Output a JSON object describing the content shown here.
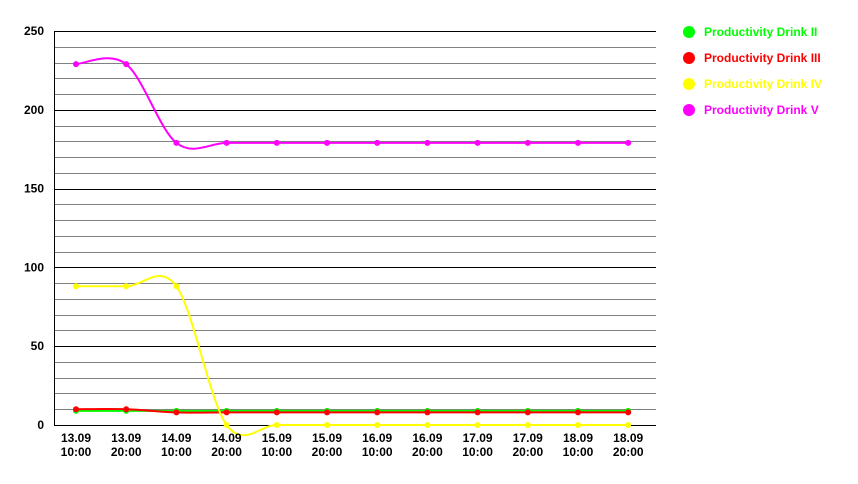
{
  "chart_data": {
    "type": "line",
    "categories": [
      [
        "13.09",
        "10:00"
      ],
      [
        "13.09",
        "20:00"
      ],
      [
        "14.09",
        "10:00"
      ],
      [
        "14.09",
        "20:00"
      ],
      [
        "15.09",
        "10:00"
      ],
      [
        "15.09",
        "20:00"
      ],
      [
        "16.09",
        "10:00"
      ],
      [
        "16.09",
        "20:00"
      ],
      [
        "17.09",
        "10:00"
      ],
      [
        "17.09",
        "20:00"
      ],
      [
        "18.09",
        "10:00"
      ],
      [
        "18.09",
        "20:00"
      ]
    ],
    "ylim": [
      0,
      250
    ],
    "yticks": [
      0,
      50,
      100,
      150,
      200,
      250
    ],
    "minor_grid_step": 10,
    "grid": true,
    "smooth": true,
    "legend_position": "right",
    "series": [
      {
        "name": "Productivity Drink II",
        "color": "#00ff00",
        "values": [
          9,
          9,
          9,
          9,
          9,
          9,
          9,
          9,
          9,
          9,
          9,
          9
        ]
      },
      {
        "name": "Productivity Drink III",
        "color": "#ff0000",
        "values": [
          10,
          10,
          8,
          8,
          8,
          8,
          8,
          8,
          8,
          8,
          8,
          8
        ]
      },
      {
        "name": "Productivity Drink IV",
        "color": "#ffff00",
        "values": [
          88,
          88,
          88,
          0,
          0,
          0,
          0,
          0,
          0,
          0,
          0,
          0
        ]
      },
      {
        "name": "Productivity Drink V",
        "color": "#ff00ff",
        "values": [
          229,
          229,
          179,
          179,
          179,
          179,
          179,
          179,
          179,
          179,
          179,
          179
        ]
      }
    ]
  }
}
